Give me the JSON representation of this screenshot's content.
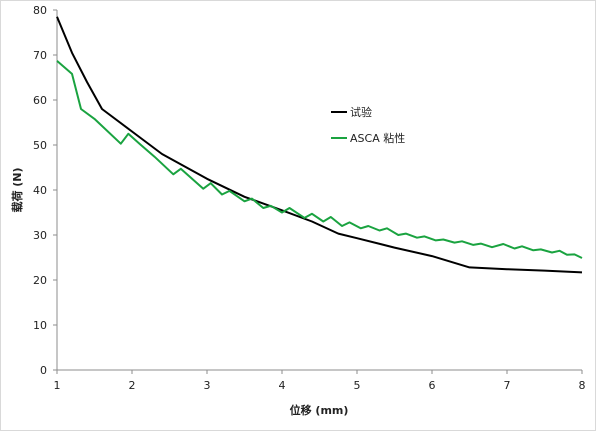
{
  "chart_data": {
    "type": "line",
    "title": "",
    "xlabel": "位移 (mm)",
    "ylabel": "载荷 (N)",
    "xlim": [
      1,
      8
    ],
    "ylim": [
      0,
      80
    ],
    "x_ticks": [
      1,
      2,
      3,
      4,
      5,
      6,
      7,
      8
    ],
    "y_ticks": [
      0,
      10,
      20,
      30,
      40,
      50,
      60,
      70,
      80
    ],
    "grid": false,
    "legend_position": "right-inside",
    "series": [
      {
        "name": "试验",
        "color": "#000000",
        "points": [
          [
            1.0,
            78.5
          ],
          [
            1.2,
            70.5
          ],
          [
            1.4,
            64.0
          ],
          [
            1.6,
            58.0
          ],
          [
            2.0,
            53.0
          ],
          [
            2.4,
            48.0
          ],
          [
            3.0,
            42.5
          ],
          [
            3.5,
            38.5
          ],
          [
            4.0,
            35.5
          ],
          [
            4.4,
            33.0
          ],
          [
            4.75,
            30.3
          ],
          [
            5.0,
            29.3
          ],
          [
            5.5,
            27.2
          ],
          [
            6.0,
            25.3
          ],
          [
            6.5,
            22.8
          ],
          [
            7.0,
            22.4
          ],
          [
            7.5,
            22.1
          ],
          [
            8.0,
            21.7
          ]
        ]
      },
      {
        "name": "ASCA 粘性",
        "color": "#1aa340",
        "points": [
          [
            1.0,
            68.7
          ],
          [
            1.2,
            65.8
          ],
          [
            1.32,
            58.0
          ],
          [
            1.5,
            55.8
          ],
          [
            1.85,
            50.3
          ],
          [
            1.95,
            52.5
          ],
          [
            2.1,
            50.3
          ],
          [
            2.3,
            47.4
          ],
          [
            2.55,
            43.5
          ],
          [
            2.65,
            44.7
          ],
          [
            2.95,
            40.3
          ],
          [
            3.05,
            41.5
          ],
          [
            3.2,
            39.0
          ],
          [
            3.3,
            39.8
          ],
          [
            3.5,
            37.5
          ],
          [
            3.6,
            38.1
          ],
          [
            3.75,
            36.0
          ],
          [
            3.85,
            36.5
          ],
          [
            4.0,
            35.0
          ],
          [
            4.1,
            36.0
          ],
          [
            4.3,
            33.8
          ],
          [
            4.4,
            34.7
          ],
          [
            4.55,
            33.0
          ],
          [
            4.65,
            34.0
          ],
          [
            4.8,
            32.0
          ],
          [
            4.9,
            32.8
          ],
          [
            5.05,
            31.5
          ],
          [
            5.15,
            32.0
          ],
          [
            5.3,
            31.0
          ],
          [
            5.4,
            31.5
          ],
          [
            5.55,
            30.0
          ],
          [
            5.65,
            30.3
          ],
          [
            5.8,
            29.4
          ],
          [
            5.9,
            29.7
          ],
          [
            6.05,
            28.8
          ],
          [
            6.15,
            29.0
          ],
          [
            6.3,
            28.3
          ],
          [
            6.4,
            28.6
          ],
          [
            6.55,
            27.8
          ],
          [
            6.65,
            28.1
          ],
          [
            6.8,
            27.3
          ],
          [
            6.95,
            28.0
          ],
          [
            7.1,
            27.0
          ],
          [
            7.2,
            27.5
          ],
          [
            7.35,
            26.6
          ],
          [
            7.45,
            26.8
          ],
          [
            7.6,
            26.1
          ],
          [
            7.7,
            26.5
          ],
          [
            7.8,
            25.6
          ],
          [
            7.9,
            25.7
          ],
          [
            8.0,
            24.9
          ]
        ]
      }
    ]
  }
}
